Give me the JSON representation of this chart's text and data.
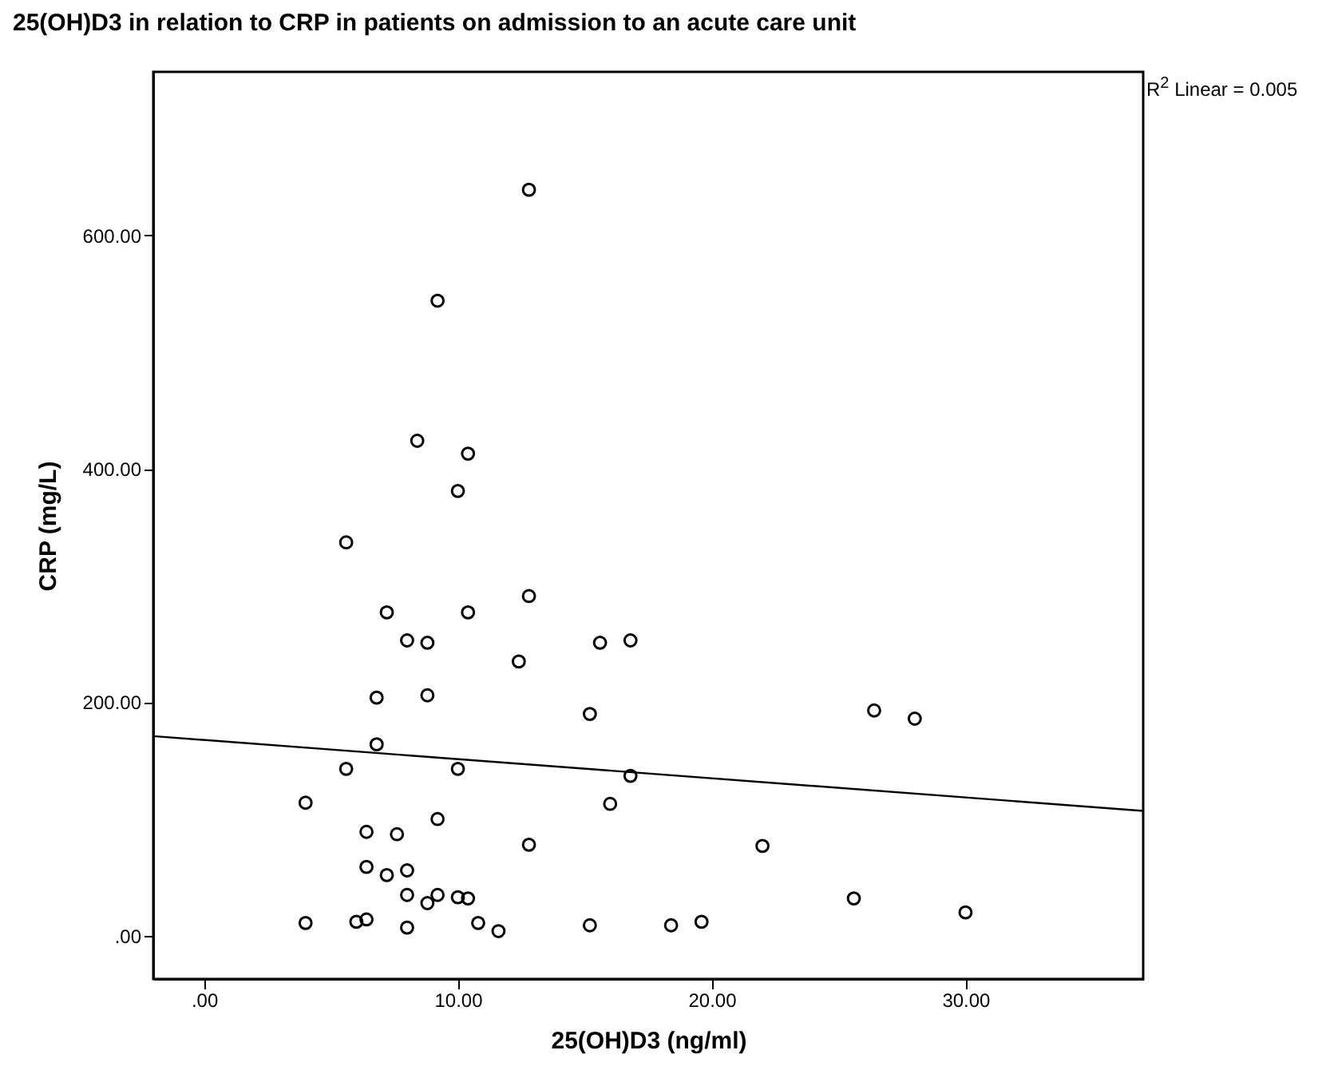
{
  "chart_data": {
    "type": "scatter",
    "title": "25(OH)D3 in relation to CRP in patients on admission to an acute care unit",
    "xlabel": "25(OH)D3 (ng/ml)",
    "ylabel": "CRP (mg/L)",
    "annotations": [
      "R$^{2}$ Linear = 0.005"
    ],
    "xlim": [
      -2,
      37
    ],
    "ylim": [
      -37,
      740
    ],
    "xticks": [
      {
        "value": 0,
        "label": ".00"
      },
      {
        "value": 10,
        "label": "10.00"
      },
      {
        "value": 20,
        "label": "20.00"
      },
      {
        "value": 30,
        "label": "30.00"
      }
    ],
    "yticks": [
      {
        "value": 0,
        "label": ".00"
      },
      {
        "value": 200,
        "label": "200.00"
      },
      {
        "value": 400,
        "label": "400.00"
      },
      {
        "value": 600,
        "label": "600.00"
      }
    ],
    "grid": false,
    "marker": "circle",
    "series": [
      {
        "color": "#000000",
        "x": [
          12.8,
          9.2,
          8.4,
          10.4,
          10.0,
          5.6,
          12.8,
          7.2,
          10.4,
          8.0,
          8.8,
          15.6,
          16.8,
          12.4,
          6.8,
          8.8,
          15.2,
          26.4,
          28.0,
          6.8,
          5.6,
          10.0,
          16.8,
          4.0,
          16.0,
          9.2,
          6.4,
          7.6,
          12.8,
          22.0,
          6.4,
          7.2,
          8.0,
          8.0,
          8.8,
          9.2,
          10.0,
          10.4,
          25.6,
          30.0,
          4.0,
          6.0,
          6.4,
          8.0,
          10.8,
          11.6,
          15.2,
          18.4,
          19.6
        ],
        "values": [
          639,
          544,
          424,
          413,
          381,
          337,
          291,
          277,
          277,
          253,
          251,
          251,
          253,
          235,
          204,
          206,
          190,
          193,
          186,
          164,
          143,
          143,
          137,
          114,
          113,
          100,
          89,
          87,
          78,
          77,
          59,
          52,
          56,
          35,
          28,
          35,
          33,
          32,
          32,
          20,
          11,
          12,
          14,
          7,
          11,
          4,
          9,
          9,
          12
        ]
      },
      {
        "type": "line",
        "color": "#000000",
        "marker": "none",
        "x": [
          -2,
          37
        ],
        "values": [
          171,
          107
        ]
      }
    ]
  }
}
